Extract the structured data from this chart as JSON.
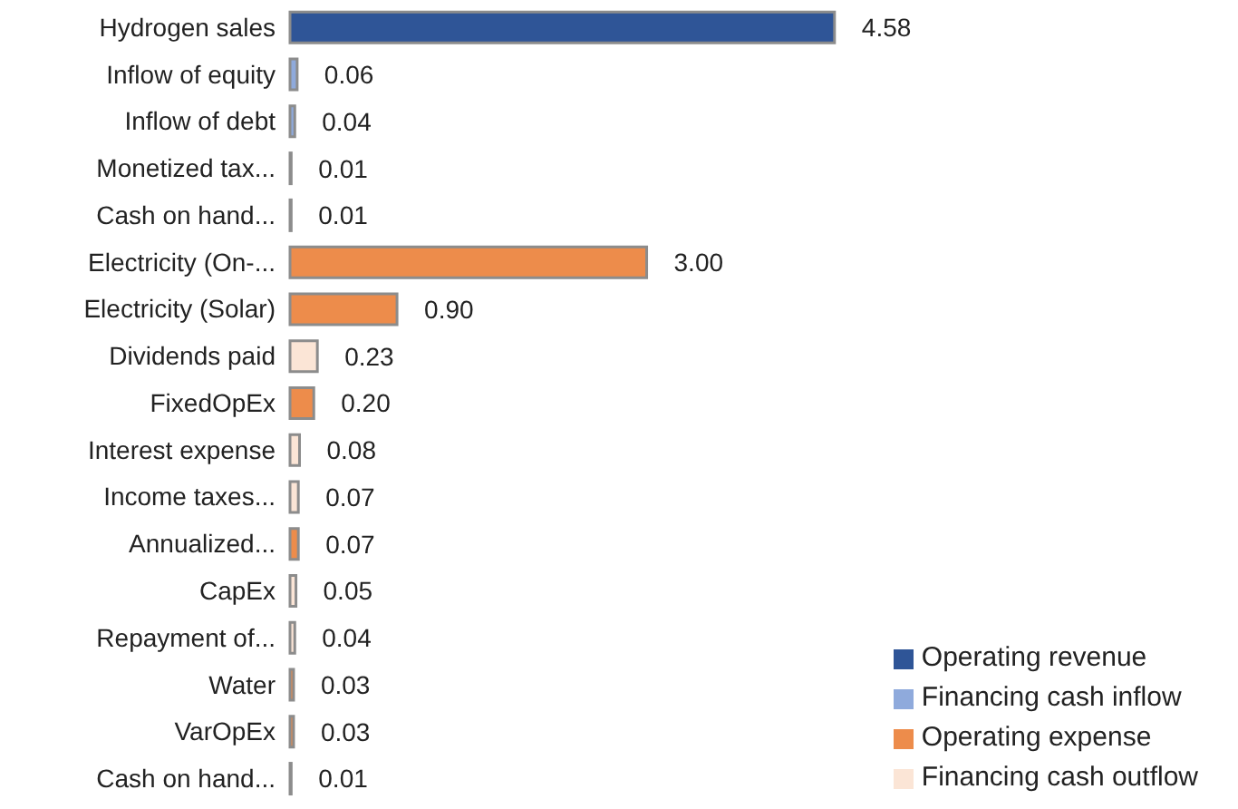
{
  "chart_data": {
    "type": "bar",
    "orientation": "horizontal",
    "stacked": true,
    "legend": "bottom right",
    "categories": [
      "Hydrogen sales",
      "Inflow of equity",
      "Inflow of debt",
      "Monetized tax...",
      "Cash on hand...",
      "Electricity (On-...",
      "Electricity (Solar)",
      "Dividends paid",
      "FixedOpEx",
      "Interest expense",
      "Income taxes...",
      "Annualized...",
      "CapEx",
      "Repayment of...",
      "Water",
      "VarOpEx",
      "Cash on hand..."
    ],
    "series": [
      {
        "name": "Operating revenue",
        "color": "#2f5597",
        "values": [
          4.58,
          null,
          null,
          null,
          null,
          null,
          null,
          null,
          null,
          null,
          null,
          null,
          null,
          null,
          null,
          null,
          null
        ],
        "value_labels": [
          "4.58",
          null,
          null,
          null,
          null,
          null,
          null,
          null,
          null,
          null,
          null,
          null,
          null,
          null,
          null,
          null,
          null
        ]
      },
      {
        "name": "Financing cash inflow",
        "color": "#8faadc",
        "values": [
          null,
          0.06,
          0.04,
          0.01,
          0.01,
          null,
          null,
          null,
          null,
          null,
          null,
          null,
          null,
          null,
          null,
          null,
          null
        ],
        "value_labels": [
          null,
          "0.06",
          "0.04",
          "0.01",
          "0.01",
          null,
          null,
          null,
          null,
          null,
          null,
          null,
          null,
          null,
          null,
          null,
          null
        ]
      },
      {
        "name": "Operating expense",
        "color": "#ed8c4b",
        "values": [
          null,
          null,
          null,
          null,
          null,
          3,
          0.9,
          null,
          0.2,
          null,
          null,
          0.07,
          null,
          null,
          0.03,
          0.03,
          null
        ],
        "value_labels": [
          null,
          null,
          null,
          null,
          null,
          "3.00",
          "0.90",
          null,
          "0.20",
          null,
          null,
          "0.07",
          null,
          null,
          "0.03",
          "0.03",
          null
        ]
      },
      {
        "name": "Financing cash outflow",
        "color": "#fbe5d6",
        "values": [
          null,
          null,
          null,
          null,
          null,
          null,
          null,
          0.23,
          null,
          0.08,
          0.07,
          null,
          0.05,
          0.04,
          null,
          null,
          0.01
        ],
        "value_labels": [
          null,
          null,
          null,
          null,
          null,
          null,
          null,
          "0.23",
          null,
          "0.08",
          "0.07",
          null,
          "0.05",
          "0.04",
          null,
          null,
          "0.01"
        ]
      }
    ]
  }
}
